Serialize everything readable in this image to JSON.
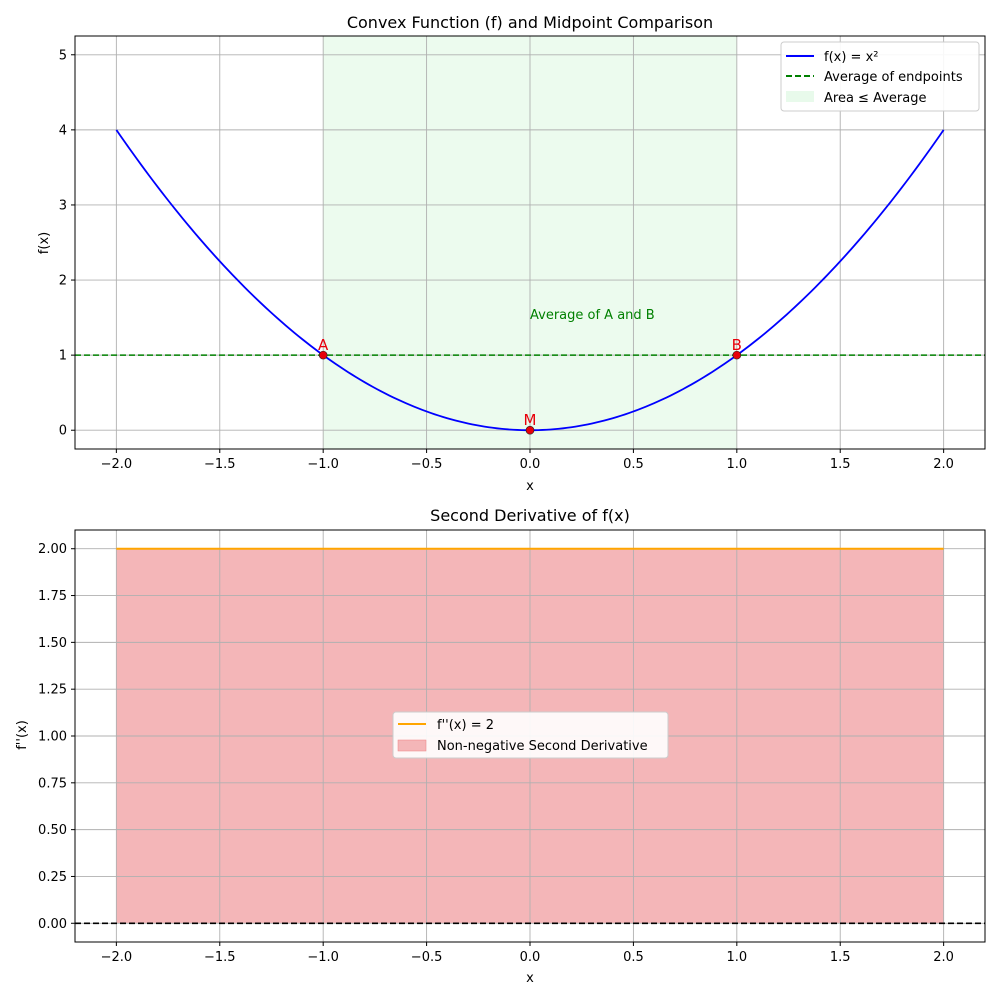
{
  "chart_data": [
    {
      "type": "line",
      "title": "Convex Function (f) and Midpoint Comparison",
      "xlabel": "x",
      "ylabel": "f(x)",
      "xlim": [
        -2.2,
        2.2
      ],
      "ylim": [
        -0.25,
        5.25
      ],
      "xticks": [
        -2.0,
        -1.5,
        -1.0,
        -0.5,
        0.0,
        0.5,
        1.0,
        1.5,
        2.0
      ],
      "xtick_labels": [
        "−2.0",
        "−1.5",
        "−1.0",
        "−0.5",
        "0.0",
        "0.5",
        "1.0",
        "1.5",
        "2.0"
      ],
      "yticks": [
        0,
        1,
        2,
        3,
        4,
        5
      ],
      "ytick_labels": [
        "0",
        "1",
        "2",
        "3",
        "4",
        "5"
      ],
      "grid": true,
      "legend_position": "top-right",
      "series": [
        {
          "name": "f(x) = x²",
          "kind": "line",
          "color": "#0000ff",
          "x": [
            -2.0,
            -1.75,
            -1.5,
            -1.25,
            -1.0,
            -0.75,
            -0.5,
            -0.25,
            0.0,
            0.25,
            0.5,
            0.75,
            1.0,
            1.25,
            1.5,
            1.75,
            2.0
          ],
          "y": [
            4.0,
            3.0625,
            2.25,
            1.5625,
            1.0,
            0.5625,
            0.25,
            0.0625,
            0.0,
            0.0625,
            0.25,
            0.5625,
            1.0,
            1.5625,
            2.25,
            3.0625,
            4.0
          ]
        },
        {
          "name": "Average of endpoints",
          "kind": "hline",
          "color": "#008000",
          "y": 1
        },
        {
          "name": "Area ≤ Average",
          "kind": "span",
          "color": "#d9f7dd",
          "x_range": [
            -1,
            1
          ]
        }
      ],
      "points": [
        {
          "label": "A",
          "x": -1,
          "y": 1
        },
        {
          "label": "B",
          "x": 1,
          "y": 1
        },
        {
          "label": "M",
          "x": 0,
          "y": 0
        }
      ],
      "point_color": "#e8000b",
      "annotation": {
        "text": "Average of A and B",
        "x": 0.0,
        "y": 1.55
      }
    },
    {
      "type": "area",
      "title": "Second Derivative of f(x)",
      "xlabel": "x",
      "ylabel": "f''(x)",
      "xlim": [
        -2.2,
        2.2
      ],
      "ylim": [
        -0.1,
        2.1
      ],
      "xticks": [
        -2.0,
        -1.5,
        -1.0,
        -0.5,
        0.0,
        0.5,
        1.0,
        1.5,
        2.0
      ],
      "xtick_labels": [
        "−2.0",
        "−1.5",
        "−1.0",
        "−0.5",
        "0.0",
        "0.5",
        "1.0",
        "1.5",
        "2.0"
      ],
      "yticks": [
        0.0,
        0.25,
        0.5,
        0.75,
        1.0,
        1.25,
        1.5,
        1.75,
        2.0
      ],
      "ytick_labels": [
        "0.00",
        "0.25",
        "0.50",
        "0.75",
        "1.00",
        "1.25",
        "1.50",
        "1.75",
        "2.00"
      ],
      "grid": true,
      "legend_position": "center",
      "series": [
        {
          "name": "f''(x) = 2",
          "kind": "line",
          "color": "#ffa500",
          "x": [
            -2.0,
            2.0
          ],
          "y": [
            2.0,
            2.0
          ]
        },
        {
          "name": "Non-negative Second Derivative",
          "kind": "fill",
          "color": "#f4b6b8",
          "x": [
            -2.0,
            2.0
          ],
          "y": [
            2.0,
            2.0
          ]
        },
        {
          "kind": "hline",
          "color": "#000000",
          "y": 0
        }
      ]
    }
  ]
}
